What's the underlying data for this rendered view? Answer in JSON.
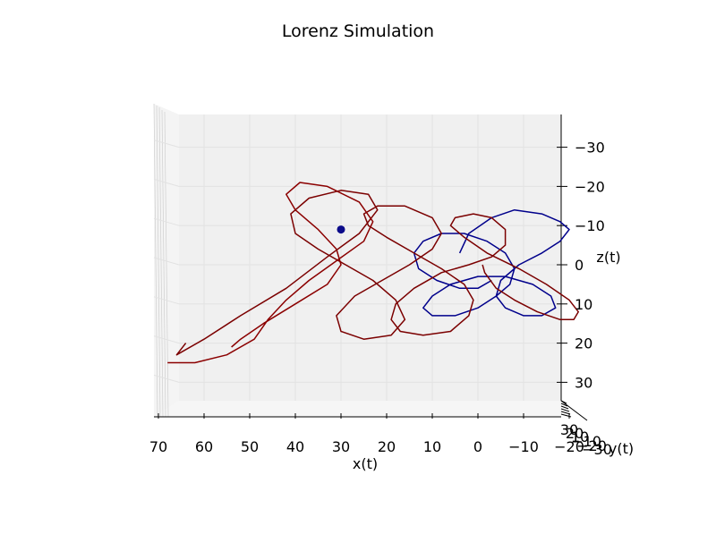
{
  "chart_data": {
    "type": "line3d",
    "title": "Lorenz Simulation",
    "xlabel": "x(t)",
    "ylabel": "y(t)",
    "zlabel": "z(t)",
    "x_ticks": [
      "70",
      "60",
      "50",
      "40",
      "30",
      "20",
      "10",
      "0",
      "−10",
      "−20"
    ],
    "z_ticks": [
      "−30",
      "−20",
      "−10",
      "0",
      "10",
      "20",
      "30"
    ],
    "y_ticks": [
      "30",
      "20",
      "10",
      "−10",
      "−20",
      "−30"
    ],
    "colors": {
      "pane": "#f0f0f0",
      "grid": "#e2e2e2",
      "axis": "#000000"
    },
    "series": [
      {
        "color": "#00008b",
        "x": [
          4.0,
          2.0,
          -3.0,
          -8.0,
          -14.0,
          -18.0,
          -20.0,
          -18.0,
          -14.0,
          -9.0,
          -5.0,
          -4.0,
          -6.0,
          -10.0,
          -14.0,
          -17.0,
          -16.0,
          -12.0,
          -6.0,
          0.0,
          6.0,
          10.0,
          12.0,
          10.0,
          5.0,
          0.0,
          -4.0,
          -7.0,
          -8.0,
          -6.0,
          -2.0,
          3.0,
          8.0,
          12.0,
          14.0,
          13.0,
          9.0,
          4.0,
          0.0,
          -3.0
        ],
        "z": [
          -3.0,
          -8.0,
          -12.0,
          -14.0,
          -13.0,
          -11.0,
          -9.0,
          -6.0,
          -3.0,
          0.0,
          4.0,
          8.0,
          11.0,
          13.0,
          13.0,
          11.0,
          8.0,
          5.0,
          3.0,
          3.0,
          5.0,
          8.0,
          11.0,
          13.0,
          13.0,
          11.0,
          8.0,
          5.0,
          1.0,
          -3.0,
          -6.0,
          -8.0,
          -8.0,
          -6.0,
          -3.0,
          1.0,
          4.0,
          6.0,
          6.0,
          4.0
        ]
      },
      {
        "color": "#7b0000",
        "x": [
          -1.0,
          -1.5,
          -4.0,
          -8.0,
          -13.0,
          -18.0,
          -21.0,
          -22.0,
          -20.0,
          -15.0,
          -9.0,
          -2.0,
          3.0,
          6.0,
          5.0,
          1.0,
          -3.0,
          -6.0,
          -6.0,
          -3.0,
          2.0,
          8.0,
          14.0,
          18.0,
          19.0,
          17.0,
          12.0,
          6.0,
          2.0,
          1.0,
          3.0,
          8.0,
          14.0,
          20.0,
          24.0,
          25.0,
          22.0,
          16.0,
          10.0,
          8.0,
          10.0,
          15.0,
          21.0,
          27.0,
          31.0,
          30.0,
          25.0,
          19.0,
          16.0,
          18.0,
          23.0,
          29.0,
          35.0,
          40.0,
          41.0,
          37.0,
          30.0,
          24.0,
          22.0,
          26.0,
          33.0,
          42.0,
          52.0,
          60.0,
          66.0,
          64.0
        ],
        "z": [
          0.0,
          2.0,
          6.0,
          9.0,
          12.0,
          14.0,
          14.0,
          12.0,
          9.0,
          5.0,
          1.0,
          -3.0,
          -7.0,
          -10.0,
          -12.0,
          -13.0,
          -12.0,
          -9.0,
          -5.0,
          -2.0,
          0.0,
          2.0,
          6.0,
          10.0,
          14.0,
          17.0,
          18.0,
          17.0,
          13.0,
          9.0,
          5.0,
          1.0,
          -3.0,
          -7.0,
          -10.0,
          -13.0,
          -15.0,
          -15.0,
          -12.0,
          -8.0,
          -4.0,
          0.0,
          4.0,
          8.0,
          13.0,
          17.0,
          19.0,
          18.0,
          14.0,
          9.0,
          4.0,
          0.0,
          -4.0,
          -8.0,
          -13.0,
          -17.0,
          -19.0,
          -18.0,
          -14.0,
          -8.0,
          -2.0,
          6.0,
          13.0,
          19.0,
          23.0,
          20.0
        ]
      },
      {
        "color": "#8b0000",
        "x": [
          54.0,
          52.0,
          47.0,
          40.0,
          33.0,
          30.0,
          31.0,
          35.0,
          40.0,
          42.0,
          39.0,
          33.0,
          26.0,
          23.0,
          25.0,
          31.0,
          37.0,
          42.0,
          46.0,
          49.0,
          55.0,
          62.0,
          68.0
        ],
        "z": [
          21.0,
          19.0,
          15.0,
          10.0,
          5.0,
          0.0,
          -4.0,
          -9.0,
          -14.0,
          -18.0,
          -21.0,
          -20.0,
          -16.0,
          -11.0,
          -6.0,
          -1.0,
          4.0,
          9.0,
          14.0,
          19.0,
          23.0,
          25.0,
          25.0
        ]
      }
    ],
    "markers": [
      {
        "color": "#0b0b8a",
        "x": 30.0,
        "z": -9.0
      }
    ]
  }
}
